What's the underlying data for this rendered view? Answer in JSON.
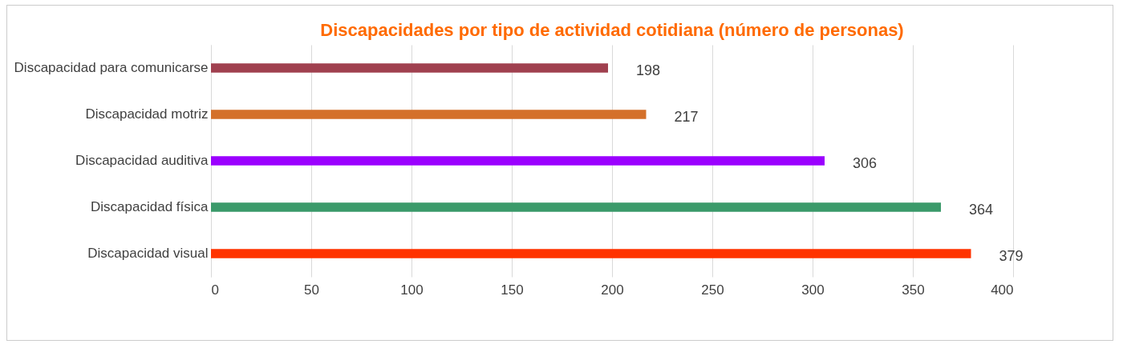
{
  "chart_data": {
    "type": "bar",
    "orientation": "horizontal",
    "title": "Discapacidades por tipo de actividad cotidiana (número de personas)",
    "categories": [
      "Discapacidad para comunicarse",
      "Discapacidad motriz",
      "Discapacidad auditiva",
      "Discapacidad física",
      "Discapacidad visual"
    ],
    "values": [
      198,
      217,
      306,
      364,
      379
    ],
    "colors": [
      "#a0404f",
      "#d4702a",
      "#9b00ff",
      "#3a9a6a",
      "#ff3300"
    ],
    "xlim": [
      0,
      400
    ],
    "xticks": [
      0,
      50,
      100,
      150,
      200,
      250,
      300,
      350,
      400
    ],
    "grid": "x",
    "data_labels": true
  }
}
